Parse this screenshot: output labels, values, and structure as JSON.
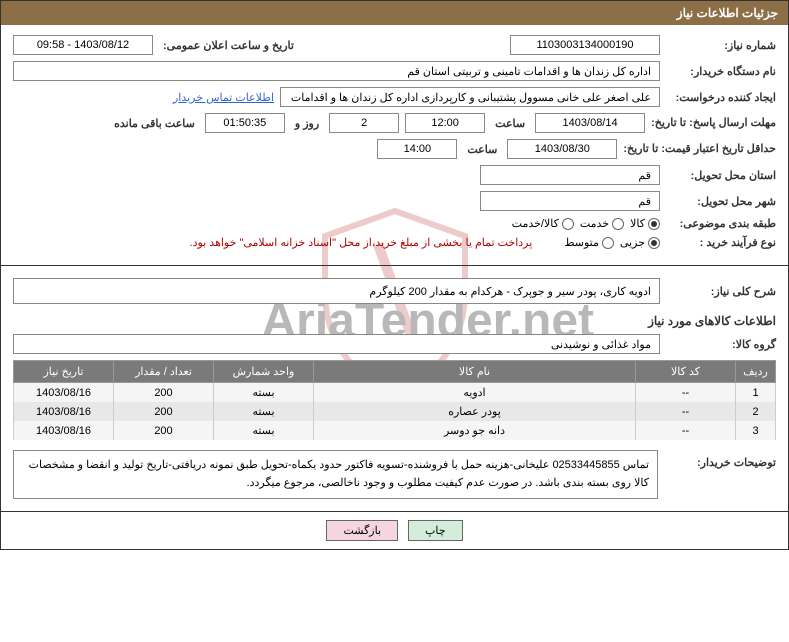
{
  "header": {
    "title": "جزئیات اطلاعات نیاز"
  },
  "fields": {
    "need_number_label": "شماره نیاز:",
    "need_number": "1103003134000190",
    "announce_label": "تاریخ و ساعت اعلان عمومی:",
    "announce_value": "1403/08/12 - 09:58",
    "buyer_org_label": "نام دستگاه خریدار:",
    "buyer_org": "اداره کل زندان ها و اقدامات تامینی و تربیتی استان قم",
    "requester_label": "ایجاد کننده درخواست:",
    "requester": "علی اصغر علی خانی مسوول پشتیبانی و کارپردازی اداره کل زندان ها و اقدامات",
    "contact_link": "اطلاعات تماس خریدار",
    "deadline_label": "مهلت ارسال پاسخ: تا تاریخ:",
    "deadline_date": "1403/08/14",
    "time_label": "ساعت",
    "deadline_time": "12:00",
    "days_count": "2",
    "days_and": "روز و",
    "countdown": "01:50:35",
    "remaining": "ساعت باقی مانده",
    "validity_label": "حداقل تاریخ اعتبار قیمت: تا تاریخ:",
    "validity_date": "1403/08/30",
    "validity_time": "14:00",
    "province_label": "استان محل تحویل:",
    "province": "قم",
    "city_label": "شهر محل تحویل:",
    "city": "قم",
    "category_label": "طبقه بندی موضوعی:",
    "cat_goods": "کالا",
    "cat_service": "خدمت",
    "cat_both": "کالا/خدمت",
    "process_label": "نوع فرآیند خرید :",
    "proc_small": "جزیی",
    "proc_medium": "متوسط",
    "payment_note": "پرداخت تمام یا بخشی از مبلغ خرید،از محل \"اسناد خزانه اسلامی\" خواهد بود.",
    "summary_label": "شرح کلی نیاز:",
    "summary": "ادویه کاری، پودر سیر و جوپرک - هرکدام به مقدار 200 کیلوگرم",
    "goods_section": "اطلاعات کالاهای مورد نیاز",
    "goods_group_label": "گروه کالا:",
    "goods_group": "مواد غذائی و نوشیدنی"
  },
  "table": {
    "headers": {
      "row": "ردیف",
      "code": "کد کالا",
      "name": "نام کالا",
      "unit": "واحد شمارش",
      "qty": "تعداد / مقدار",
      "date": "تاریخ نیاز"
    },
    "rows": [
      {
        "n": "1",
        "code": "--",
        "name": "ادویه",
        "unit": "بسته",
        "qty": "200",
        "date": "1403/08/16"
      },
      {
        "n": "2",
        "code": "--",
        "name": "پودر عصاره",
        "unit": "بسته",
        "qty": "200",
        "date": "1403/08/16"
      },
      {
        "n": "3",
        "code": "--",
        "name": "دانه جو دوسر",
        "unit": "بسته",
        "qty": "200",
        "date": "1403/08/16"
      }
    ]
  },
  "buyer_desc": {
    "label": "توضیحات خریدار:",
    "text": "تماس 02533445855 علیخانی-هزینه حمل با فروشنده-تسویه فاکتور حدود یکماه-تحویل طبق نمونه دریافتی-تاریخ تولید و انقضا و مشخصات کالا روی بسته بندی باشد. در صورت عدم کیفیت مطلوب و وجود ناخالصی، مرجوع میگردد."
  },
  "buttons": {
    "print": "چاپ",
    "back": "بازگشت"
  },
  "colors": {
    "header_bg": "#8c6f47",
    "th_bg": "#7a7a7a",
    "note_red": "#b00000",
    "link": "#3366cc",
    "btn_green": "#d4edda",
    "btn_pink": "#f5d6e0"
  }
}
